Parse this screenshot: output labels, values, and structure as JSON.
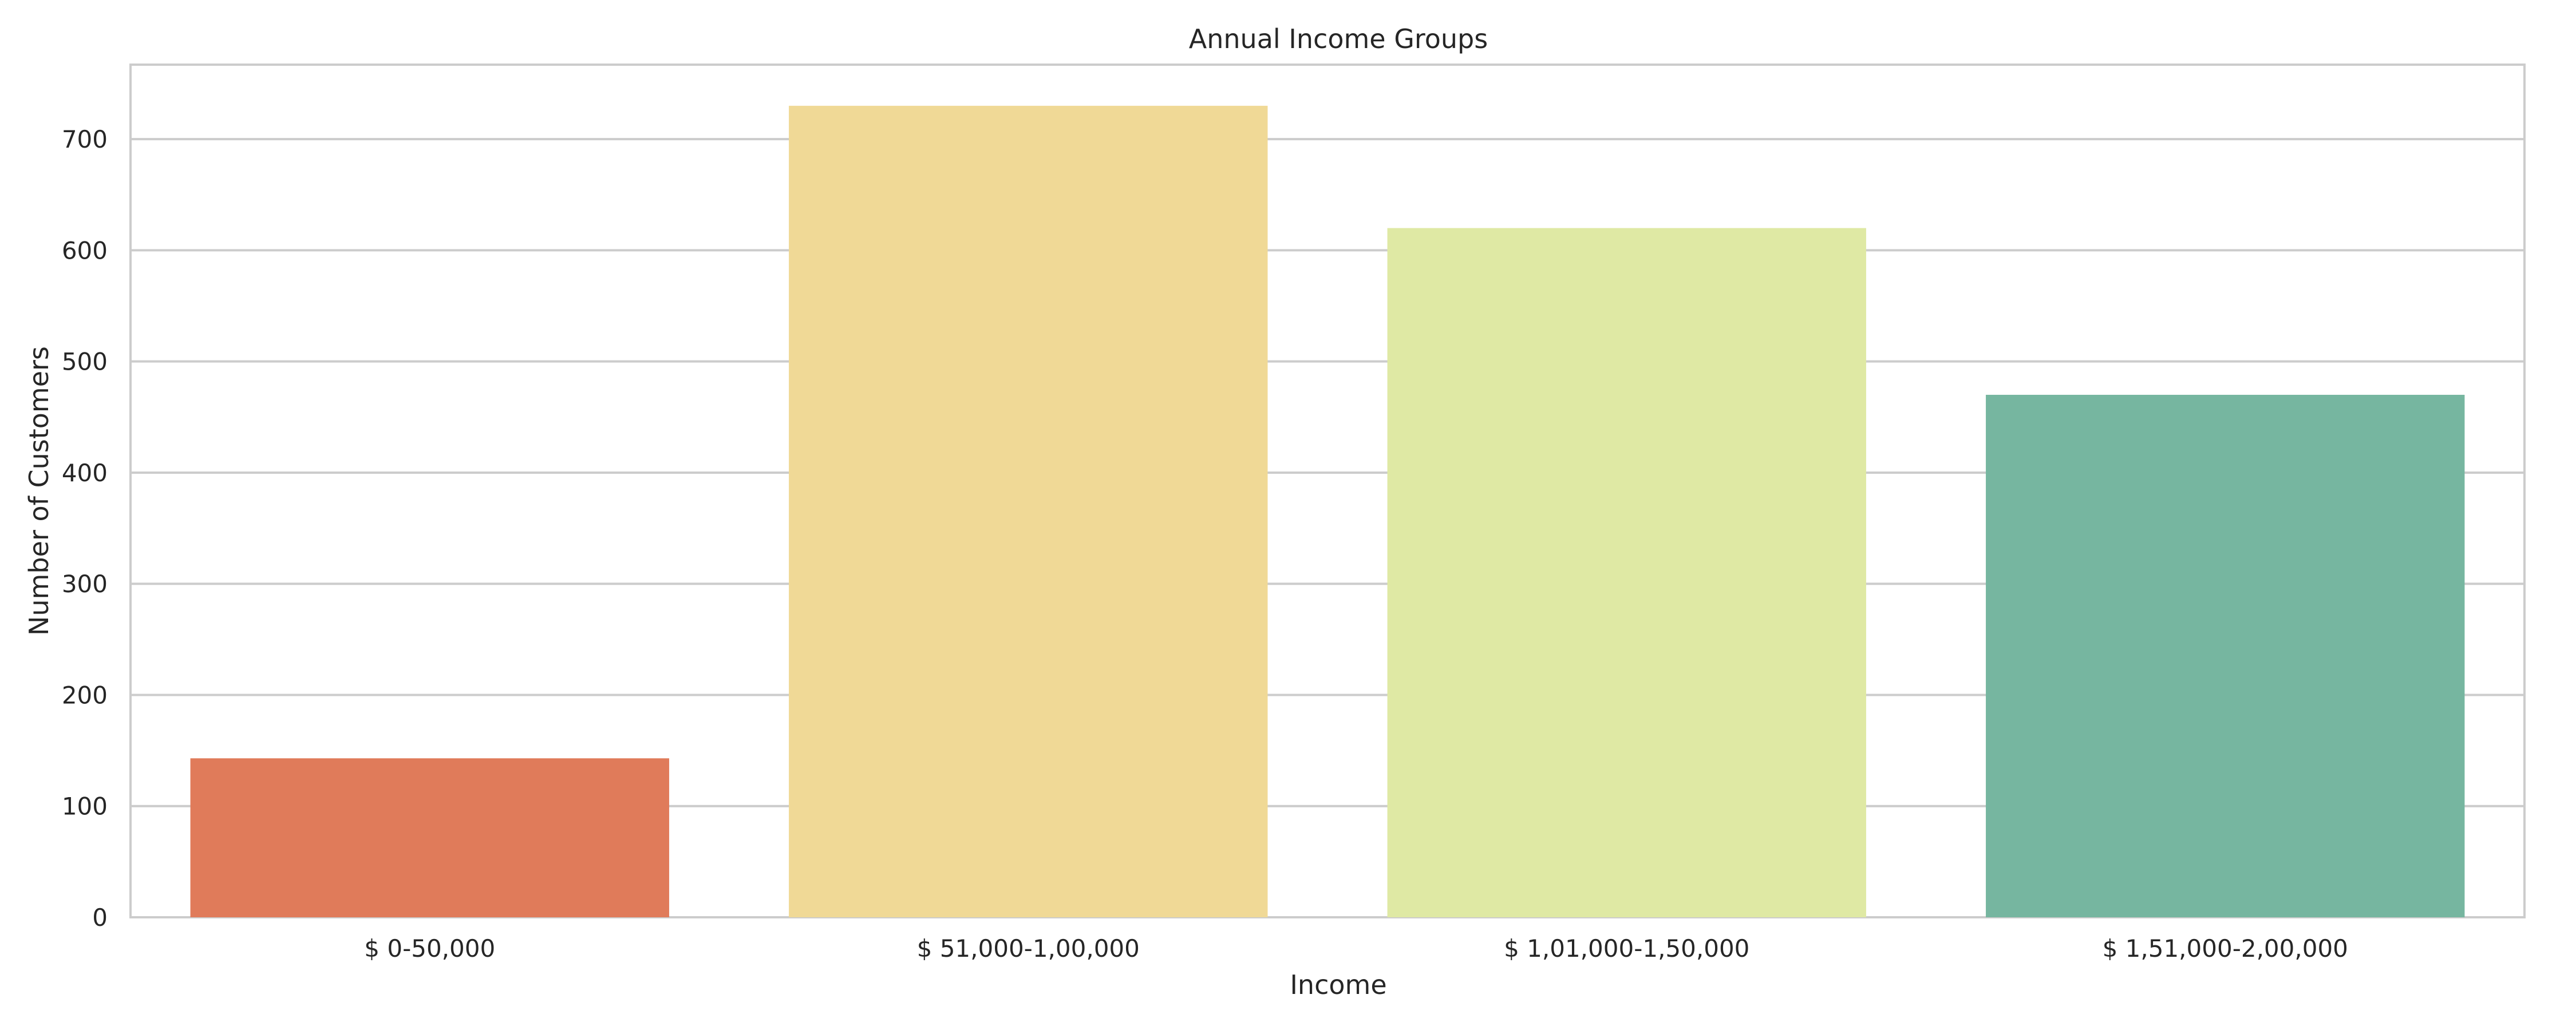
{
  "chart_data": {
    "type": "bar",
    "title": "Annual Income Groups",
    "xlabel": "Income",
    "ylabel": "Number of Customers",
    "categories": [
      "$ 0-50,000",
      "$ 51,000-1,00,000",
      "$ 1,01,000-1,50,000",
      "$ 1,51,000-2,00,000"
    ],
    "values": [
      143,
      730,
      620,
      470
    ],
    "ylim": [
      0,
      767
    ],
    "yticks": [
      0,
      100,
      200,
      300,
      400,
      500,
      600,
      700
    ],
    "grid": "horizontal",
    "colors": [
      "#e07b5a",
      "#f0d996",
      "#dfe9a4",
      "#76b6a0"
    ]
  }
}
